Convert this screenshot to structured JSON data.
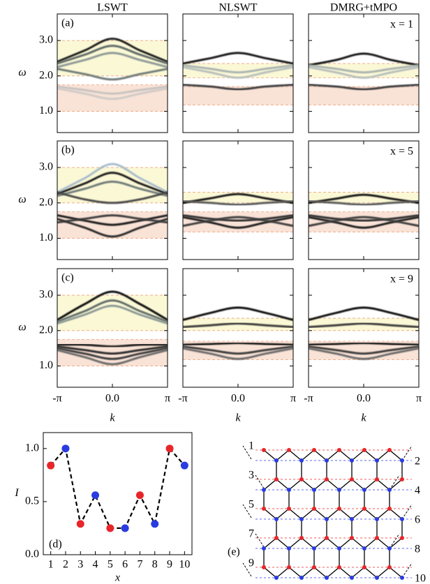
{
  "chart_data": [
    {
      "type": "spectrum",
      "title": "LSWT",
      "label": "(a)",
      "ylabel": "ω",
      "x": [
        -3.14159,
        -1.5708,
        0,
        1.5708,
        3.14159
      ],
      "xlim": [
        -3.14159,
        3.14159
      ],
      "xticks": [
        -3.14159,
        0,
        3.14159
      ],
      "ylim": [
        0.4,
        3.75
      ],
      "yticks": [
        {
          "value": 1,
          "label": "1.0"
        },
        {
          "value": 2,
          "label": "2.0"
        },
        {
          "value": 3,
          "label": "3.0"
        }
      ],
      "regions": [
        {
          "range": [
            2.0,
            3.0
          ],
          "color": "#fbf8d6"
        },
        {
          "range": [
            1.0,
            1.75
          ],
          "color": "#f9e2d6"
        }
      ],
      "curves": [
        {
          "color": "#1e1e1e",
          "values": [
            2.4,
            2.72,
            3.05,
            2.72,
            2.4
          ]
        },
        {
          "color": "#5f6b68",
          "values": [
            2.35,
            2.6,
            2.85,
            2.6,
            2.35
          ]
        },
        {
          "color": "#8c9995",
          "values": [
            2.25,
            2.45,
            2.65,
            2.45,
            2.25
          ]
        },
        {
          "color": "#6f7b78",
          "values": [
            2.2,
            2.05,
            1.9,
            2.05,
            2.2
          ]
        },
        {
          "color": "#c7c2c0",
          "values": [
            1.7,
            1.6,
            1.5,
            1.6,
            1.7
          ]
        },
        {
          "color": "#cfcac8",
          "values": [
            1.65,
            1.5,
            1.35,
            1.5,
            1.65
          ]
        }
      ]
    },
    {
      "type": "spectrum",
      "title": "NLSWT",
      "x": [
        -3.14159,
        -1.5708,
        0,
        1.5708,
        3.14159
      ],
      "xlim": [
        -3.14159,
        3.14159
      ],
      "xticks": [
        -3.14159,
        0,
        3.14159
      ],
      "ylim": [
        0.4,
        3.75
      ],
      "yticks": [
        1,
        2,
        3
      ],
      "regions": [
        {
          "range": [
            1.95,
            2.35
          ],
          "color": "#fbf8d6"
        },
        {
          "range": [
            1.18,
            1.7
          ],
          "color": "#f9e2d6"
        }
      ],
      "curves": [
        {
          "color": "#151515",
          "values": [
            2.35,
            2.5,
            2.65,
            2.5,
            2.35
          ]
        },
        {
          "color": "#a9b3b0",
          "values": [
            2.3,
            2.2,
            2.1,
            2.2,
            2.3
          ]
        },
        {
          "color": "#b7bfbc",
          "values": [
            2.25,
            2.1,
            1.95,
            2.1,
            2.25
          ]
        },
        {
          "color": "#3c3c3c",
          "values": [
            1.75,
            1.7,
            1.62,
            1.7,
            1.75
          ]
        }
      ]
    },
    {
      "type": "spectrum",
      "title": "DMRG+tMPO",
      "annotation": "x = 1",
      "x": [
        -3.14159,
        -1.5708,
        0,
        1.5708,
        3.14159
      ],
      "xlim": [
        -3.14159,
        3.14159
      ],
      "xticks": [
        -3.14159,
        0,
        3.14159
      ],
      "ylim": [
        0.4,
        3.75
      ],
      "yticks": [
        1,
        2,
        3
      ],
      "regions": [
        {
          "range": [
            1.95,
            2.35
          ],
          "color": "#fbf8d6"
        },
        {
          "range": [
            1.18,
            1.7
          ],
          "color": "#f9e2d6"
        }
      ],
      "curves": [
        {
          "color": "#151515",
          "values": [
            2.3,
            2.45,
            2.63,
            2.45,
            2.3
          ]
        },
        {
          "color": "#a9b3b0",
          "values": [
            2.3,
            2.2,
            2.1,
            2.2,
            2.3
          ]
        },
        {
          "color": "#b7bfbc",
          "values": [
            2.25,
            2.1,
            1.95,
            2.1,
            2.25
          ]
        },
        {
          "color": "#3c3c3c",
          "values": [
            1.75,
            1.7,
            1.62,
            1.7,
            1.75
          ]
        }
      ]
    },
    {
      "type": "spectrum",
      "label": "(b)",
      "ylabel": "ω",
      "x": [
        -3.14159,
        -1.5708,
        0,
        1.5708,
        3.14159
      ],
      "xlim": [
        -3.14159,
        3.14159
      ],
      "xticks": [
        -3.14159,
        0,
        3.14159
      ],
      "ylim": [
        0.4,
        3.75
      ],
      "yticks": [
        {
          "value": 1,
          "label": "1.0"
        },
        {
          "value": 2,
          "label": "2.0"
        },
        {
          "value": 3,
          "label": "3.0"
        }
      ],
      "regions": [
        {
          "range": [
            2.0,
            3.0
          ],
          "color": "#fbf8d6"
        },
        {
          "range": [
            1.0,
            1.75
          ],
          "color": "#f9e2d6"
        }
      ],
      "curves": [
        {
          "color": "#a8bccb",
          "values": [
            2.3,
            2.7,
            3.1,
            2.7,
            2.3
          ]
        },
        {
          "color": "#1e1e1e",
          "values": [
            2.25,
            2.55,
            2.85,
            2.55,
            2.25
          ]
        },
        {
          "color": "#6f7b78",
          "values": [
            2.2,
            2.4,
            2.6,
            2.4,
            2.2
          ]
        },
        {
          "color": "#4a4a4a",
          "values": [
            2.3,
            2.1,
            2.0,
            2.1,
            2.3
          ]
        },
        {
          "color": "#1a1a1a",
          "values": [
            1.65,
            1.5,
            1.38,
            1.5,
            1.65
          ]
        },
        {
          "color": "#2a2a2a",
          "values": [
            1.55,
            1.3,
            1.05,
            1.3,
            1.55
          ]
        },
        {
          "color": "#3a3a3a",
          "values": [
            1.45,
            1.55,
            1.65,
            1.55,
            1.45
          ]
        }
      ]
    },
    {
      "type": "spectrum",
      "x": [
        -3.14159,
        -1.5708,
        0,
        1.5708,
        3.14159
      ],
      "xlim": [
        -3.14159,
        3.14159
      ],
      "xticks": [
        -3.14159,
        0,
        3.14159
      ],
      "ylim": [
        0.4,
        3.75
      ],
      "yticks": [
        1,
        2,
        3
      ],
      "regions": [
        {
          "range": [
            2.0,
            2.3
          ],
          "color": "#fbf8d6"
        },
        {
          "range": [
            1.18,
            1.75
          ],
          "color": "#f9e2d6"
        }
      ],
      "curves": [
        {
          "color": "#151515",
          "values": [
            2.0,
            2.13,
            2.25,
            2.13,
            2.0
          ]
        },
        {
          "color": "#5a5a5a",
          "values": [
            2.05,
            2.0,
            1.95,
            2.0,
            2.05
          ]
        },
        {
          "color": "#1e1e1e",
          "values": [
            1.6,
            1.45,
            1.3,
            1.45,
            1.6
          ]
        },
        {
          "color": "#2e2e2e",
          "values": [
            1.65,
            1.55,
            1.5,
            1.55,
            1.65
          ]
        },
        {
          "color": "#3e3e3e",
          "values": [
            1.35,
            1.5,
            1.6,
            1.5,
            1.35
          ]
        }
      ]
    },
    {
      "type": "spectrum",
      "annotation": "x = 5",
      "x": [
        -3.14159,
        -1.5708,
        0,
        1.5708,
        3.14159
      ],
      "xlim": [
        -3.14159,
        3.14159
      ],
      "xticks": [
        -3.14159,
        0,
        3.14159
      ],
      "ylim": [
        0.4,
        3.75
      ],
      "yticks": [
        1,
        2,
        3
      ],
      "regions": [
        {
          "range": [
            2.0,
            2.3
          ],
          "color": "#fbf8d6"
        },
        {
          "range": [
            1.18,
            1.75
          ],
          "color": "#f9e2d6"
        }
      ],
      "curves": [
        {
          "color": "#151515",
          "values": [
            2.0,
            2.12,
            2.23,
            2.12,
            2.0
          ]
        },
        {
          "color": "#5a5a5a",
          "values": [
            2.05,
            2.0,
            1.95,
            2.0,
            2.05
          ]
        },
        {
          "color": "#1e1e1e",
          "values": [
            1.6,
            1.45,
            1.3,
            1.45,
            1.6
          ]
        },
        {
          "color": "#2e2e2e",
          "values": [
            1.65,
            1.55,
            1.5,
            1.55,
            1.65
          ]
        },
        {
          "color": "#3e3e3e",
          "values": [
            1.35,
            1.5,
            1.6,
            1.5,
            1.35
          ]
        }
      ]
    },
    {
      "type": "spectrum",
      "label": "(c)",
      "ylabel": "ω",
      "xlabel": "k",
      "x": [
        -3.14159,
        -1.5708,
        0,
        1.5708,
        3.14159
      ],
      "xlim": [
        -3.14159,
        3.14159
      ],
      "xticks": [
        {
          "value": -3.14159,
          "label": "-π"
        },
        {
          "value": 0,
          "label": "0.0"
        },
        {
          "value": 3.14159,
          "label": "π"
        }
      ],
      "ylim": [
        0.4,
        3.75
      ],
      "yticks": [
        {
          "value": 1,
          "label": "1.0"
        },
        {
          "value": 2,
          "label": "2.0"
        },
        {
          "value": 3,
          "label": "3.0"
        }
      ],
      "regions": [
        {
          "range": [
            2.0,
            3.0
          ],
          "color": "#fbf8d6"
        },
        {
          "range": [
            1.0,
            1.75
          ],
          "color": "#f9e2d6"
        }
      ],
      "curves": [
        {
          "color": "#111111",
          "values": [
            2.3,
            2.75,
            3.1,
            2.75,
            2.3
          ]
        },
        {
          "color": "#5f6b68",
          "values": [
            2.25,
            2.55,
            2.85,
            2.55,
            2.25
          ]
        },
        {
          "color": "#8c9995",
          "values": [
            2.2,
            2.45,
            2.7,
            2.45,
            2.2
          ]
        },
        {
          "color": "#1a1a1a",
          "values": [
            1.6,
            1.6,
            1.55,
            1.6,
            1.6
          ]
        },
        {
          "color": "#2a2a2a",
          "values": [
            1.55,
            1.45,
            1.35,
            1.45,
            1.55
          ]
        },
        {
          "color": "#3a3a3a",
          "values": [
            1.5,
            1.35,
            1.2,
            1.35,
            1.5
          ]
        },
        {
          "color": "#6a6a6a",
          "values": [
            1.45,
            1.25,
            1.05,
            1.25,
            1.45
          ]
        }
      ]
    },
    {
      "type": "spectrum",
      "xlabel": "k",
      "x": [
        -3.14159,
        -1.5708,
        0,
        1.5708,
        3.14159
      ],
      "xlim": [
        -3.14159,
        3.14159
      ],
      "xticks": [
        {
          "value": -3.14159,
          "label": "-π"
        },
        {
          "value": 0,
          "label": "0.0"
        },
        {
          "value": 3.14159,
          "label": "π"
        }
      ],
      "ylim": [
        0.4,
        3.75
      ],
      "yticks": [
        1,
        2,
        3
      ],
      "regions": [
        {
          "range": [
            2.0,
            2.35
          ],
          "color": "#fbf8d6"
        },
        {
          "range": [
            1.18,
            1.7
          ],
          "color": "#f9e2d6"
        }
      ],
      "curves": [
        {
          "color": "#111111",
          "values": [
            2.3,
            2.5,
            2.65,
            2.5,
            2.3
          ]
        },
        {
          "color": "#3a3a3a",
          "values": [
            2.1,
            2.15,
            2.2,
            2.15,
            2.1
          ]
        },
        {
          "color": "#1a1a1a",
          "values": [
            1.6,
            1.62,
            1.65,
            1.62,
            1.6
          ]
        },
        {
          "color": "#3a3a3a",
          "values": [
            1.55,
            1.45,
            1.35,
            1.45,
            1.55
          ]
        },
        {
          "color": "#6a6a6a",
          "values": [
            1.5,
            1.35,
            1.2,
            1.35,
            1.5
          ]
        }
      ]
    },
    {
      "type": "spectrum",
      "annotation": "x = 9",
      "xlabel": "k",
      "x": [
        -3.14159,
        -1.5708,
        0,
        1.5708,
        3.14159
      ],
      "xlim": [
        -3.14159,
        3.14159
      ],
      "xticks": [
        {
          "value": -3.14159,
          "label": "-π"
        },
        {
          "value": 0,
          "label": "0.0"
        },
        {
          "value": 3.14159,
          "label": "π"
        }
      ],
      "ylim": [
        0.4,
        3.75
      ],
      "yticks": [
        1,
        2,
        3
      ],
      "regions": [
        {
          "range": [
            2.0,
            2.35
          ],
          "color": "#fbf8d6"
        },
        {
          "range": [
            1.18,
            1.7
          ],
          "color": "#f9e2d6"
        }
      ],
      "curves": [
        {
          "color": "#111111",
          "values": [
            2.3,
            2.5,
            2.65,
            2.5,
            2.3
          ]
        },
        {
          "color": "#3a3a3a",
          "values": [
            2.1,
            2.15,
            2.2,
            2.15,
            2.1
          ]
        },
        {
          "color": "#1a1a1a",
          "values": [
            1.6,
            1.62,
            1.65,
            1.62,
            1.6
          ]
        },
        {
          "color": "#3a3a3a",
          "values": [
            1.55,
            1.45,
            1.35,
            1.45,
            1.55
          ]
        },
        {
          "color": "#6a6a6a",
          "values": [
            1.5,
            1.35,
            1.2,
            1.35,
            1.5
          ]
        }
      ]
    },
    {
      "type": "scatter",
      "label": "(d)",
      "xlabel": "x",
      "ylabel": "I",
      "x": [
        1,
        2,
        3,
        4,
        5,
        6,
        7,
        8,
        9,
        10
      ],
      "values": [
        0.84,
        1.0,
        0.29,
        0.56,
        0.25,
        0.25,
        0.56,
        0.29,
        1.0,
        0.84
      ],
      "colors": [
        "#e8262a",
        "#2a3be0",
        "#e8262a",
        "#2a3be0",
        "#e8262a",
        "#2a3be0",
        "#e8262a",
        "#2a3be0",
        "#e8262a",
        "#2a3be0"
      ],
      "line_color": "#000000",
      "line_dashed": true,
      "xlim": [
        0.5,
        10.5
      ],
      "xticks": [
        1,
        2,
        3,
        4,
        5,
        6,
        7,
        8,
        9,
        10
      ],
      "ylim": [
        0,
        1.15
      ],
      "yticks": [
        {
          "value": 0,
          "label": "0.0"
        },
        {
          "value": 0.5,
          "label": "0.5"
        },
        {
          "value": 1,
          "label": "1.0"
        }
      ]
    }
  ],
  "diagram": {
    "label": "(e)",
    "row_labels": [
      1,
      2,
      3,
      4,
      5,
      6,
      7,
      8,
      9,
      10
    ],
    "odd_color": "#e8262a",
    "even_color": "#2a3be0"
  }
}
